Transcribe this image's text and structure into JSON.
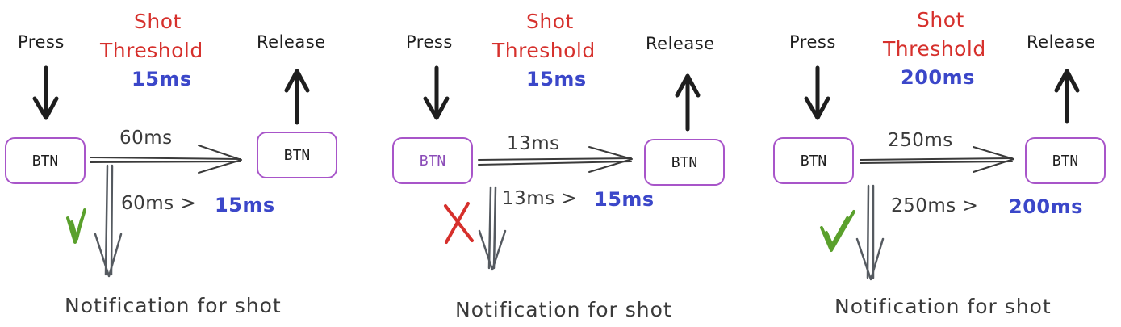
{
  "panels": [
    {
      "press": "Press",
      "release": "Release",
      "threshold_title": [
        "Shot",
        "Threshold"
      ],
      "threshold_value": "15ms",
      "btn_left": "BTN",
      "btn_right": "BTN",
      "duration": "60ms",
      "comparison_left": "60ms >",
      "comparison_right": "15ms",
      "notification": "Notification for shot",
      "result": "check"
    },
    {
      "press": "Press",
      "release": "Release",
      "threshold_title": [
        "Shot",
        "Threshold"
      ],
      "threshold_value": "15ms",
      "btn_left": "BTN",
      "btn_right": "BTN",
      "duration": "13ms",
      "comparison_left": "13ms >",
      "comparison_right": "15ms",
      "notification": "Notification for shot",
      "result": "cross"
    },
    {
      "press": "Press",
      "release": "Release",
      "threshold_title": [
        "Shot",
        "Threshold"
      ],
      "threshold_value": "200ms",
      "btn_left": "BTN",
      "btn_right": "BTN",
      "duration": "250ms",
      "comparison_left": "250ms >",
      "comparison_right": "200ms",
      "notification": "Notification for shot",
      "result": "check"
    }
  ],
  "colors": {
    "threshold_title": "#d6302c",
    "threshold_value": "#3b47c9",
    "button_border": "#a855c9",
    "check": "#5aa02c",
    "cross": "#d6302c",
    "arrow": "#1e1e1e",
    "notify_arrow": "#555a60"
  },
  "icons": {
    "press_arrow": "arrow-down-icon",
    "release_arrow": "arrow-up-icon",
    "check": "check-icon",
    "cross": "cross-icon"
  }
}
